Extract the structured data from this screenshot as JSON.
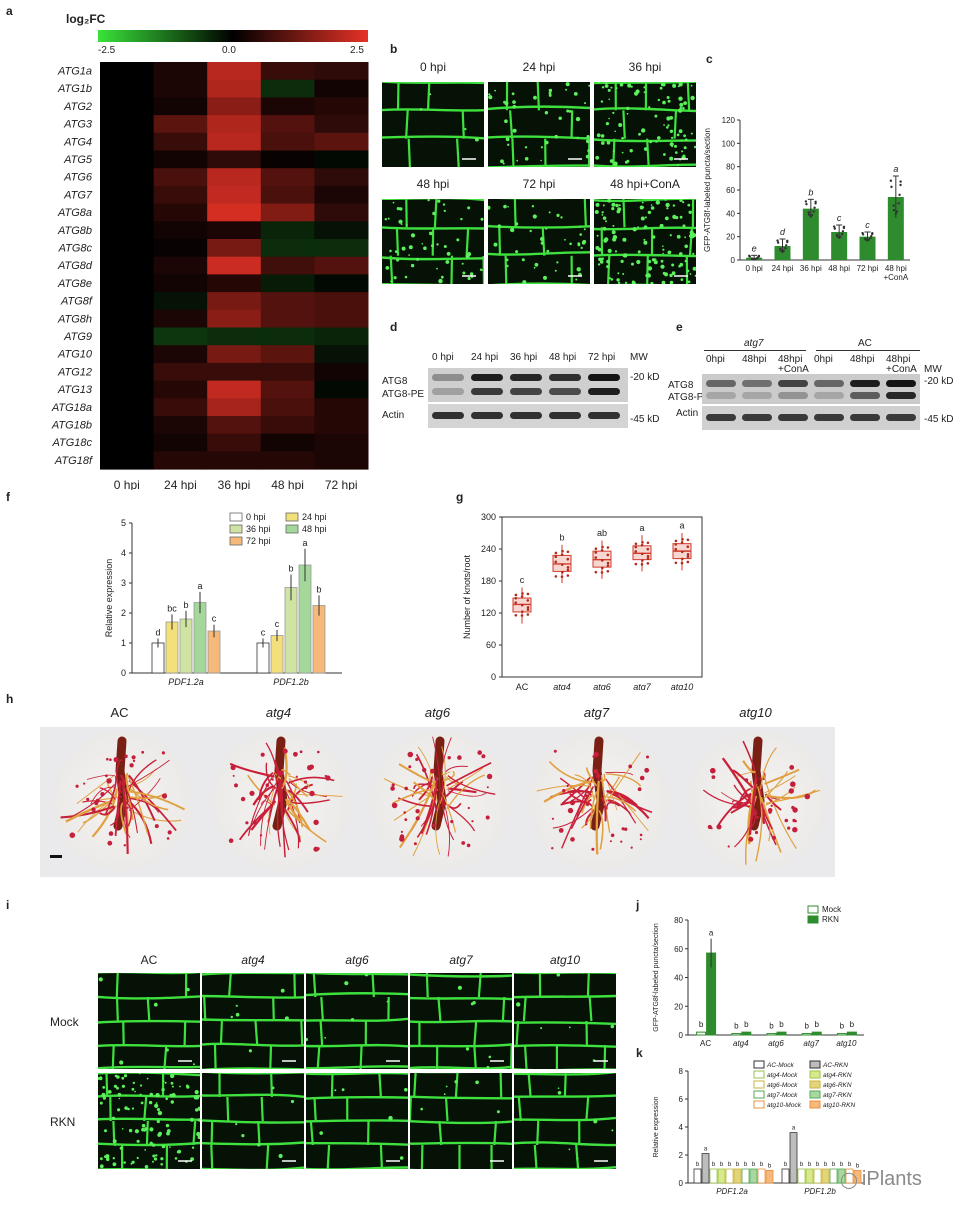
{
  "panels": [
    "a",
    "b",
    "c",
    "d",
    "e",
    "f",
    "g",
    "h",
    "i",
    "j",
    "k"
  ],
  "heatmap": {
    "title": "log₂FC",
    "scale_ticks": [
      "-2.5",
      "0.0",
      "2.5"
    ],
    "genes": [
      "ATG1a",
      "ATG1b",
      "ATG2",
      "ATG3",
      "ATG4",
      "ATG5",
      "ATG6",
      "ATG7",
      "ATG8a",
      "ATG8b",
      "ATG8c",
      "ATG8d",
      "ATG8e",
      "ATG8f",
      "ATG8h",
      "ATG9",
      "ATG10",
      "ATG12",
      "ATG13",
      "ATG18a",
      "ATG18b",
      "ATG18c",
      "ATG18f"
    ],
    "columns": [
      "0 hpi",
      "24 hpi",
      "36 hpi",
      "48 hpi",
      "72 hpi"
    ],
    "colors": {
      "low": "#39e339",
      "mid": "#000000",
      "high": "#e63226"
    }
  },
  "panel_b": {
    "labels": [
      "0 hpi",
      "24 hpi",
      "36 hpi",
      "48 hpi",
      "72 hpi",
      "48 hpi+ConA"
    ]
  },
  "panel_c": {
    "ylabel": "GFP-ATG8f-labeled puncta/section",
    "yticks": [
      "0",
      "20",
      "40",
      "60",
      "80",
      "100",
      "120"
    ],
    "categories": [
      "0 hpi",
      "24 hpi",
      "36 hpi",
      "48 hpi",
      "72 hpi",
      "48 hpi\n+ConA"
    ],
    "letters": [
      "e",
      "d",
      "b",
      "c",
      "c",
      "a"
    ]
  },
  "panel_d": {
    "lanes": [
      "0 hpi",
      "24 hpi",
      "36 hpi",
      "48 hpi",
      "72 hpi"
    ],
    "mw": "MW",
    "rows": [
      "ATG8",
      "ATG8-PE",
      "Actin"
    ],
    "markers": [
      "-20 kD",
      "-45 kD"
    ]
  },
  "panel_e": {
    "groups": [
      "atg7",
      "AC"
    ],
    "lanes": [
      "0hpi",
      "48hpi",
      "48hpi\n+ConA",
      "0hpi",
      "48hpi",
      "48hpi\n+ConA"
    ],
    "mw": "MW",
    "rows": [
      "ATG8",
      "ATG8-PE",
      "Actin"
    ],
    "markers": [
      "-20 kD",
      "-45 kD"
    ]
  },
  "panel_f": {
    "ylabel": "Relative expression",
    "yticks": [
      "0",
      "1",
      "2",
      "3",
      "4",
      "5"
    ],
    "groups": [
      "PDF1.2a",
      "PDF1.2b"
    ],
    "legend": [
      "0 hpi",
      "24 hpi",
      "36 hpi",
      "48 hpi",
      "72 hpi"
    ],
    "letters_a": [
      "d",
      "bc",
      "b",
      "a",
      "c"
    ],
    "letters_b": [
      "c",
      "c",
      "b",
      "a",
      "b"
    ]
  },
  "panel_g": {
    "ylabel": "Number of knots/root",
    "yticks": [
      "0",
      "60",
      "120",
      "180",
      "240",
      "300"
    ],
    "categories": [
      "AC",
      "atg4",
      "atg6",
      "atg7",
      "atg10"
    ],
    "letters": [
      "c",
      "b",
      "ab",
      "a",
      "a"
    ]
  },
  "panel_h": {
    "labels": [
      "AC",
      "atg4",
      "atg6",
      "atg7",
      "atg10"
    ]
  },
  "panel_i": {
    "columns": [
      "AC",
      "atg4",
      "atg6",
      "atg7",
      "atg10"
    ],
    "rows": [
      "Mock",
      "RKN"
    ]
  },
  "panel_j": {
    "ylabel": "GFP-ATG8f-labeled puncta/section",
    "yticks": [
      "0",
      "20",
      "40",
      "60",
      "80"
    ],
    "categories": [
      "AC",
      "atg4",
      "atg6",
      "atg7",
      "atg10"
    ],
    "legend": [
      "Mock",
      "RKN"
    ],
    "letters": [
      "b",
      "a",
      "b",
      "b",
      "b",
      "b",
      "b",
      "b",
      "b",
      "b"
    ]
  },
  "panel_k": {
    "ylabel": "Relative expression",
    "yticks": [
      "0",
      "2",
      "4",
      "6",
      "8"
    ],
    "groups": [
      "PDF1.2a",
      "PDF1.2b"
    ],
    "legend": [
      "AC-Mock",
      "AC-RKN",
      "atg4-Mock",
      "atg4-RKN",
      "atg6-Mock",
      "atg6-RKN",
      "atg7-Mock",
      "atg7-RKN",
      "atg10-Mock",
      "atg10-RKN"
    ]
  },
  "watermark": "iPlants",
  "chart_data": [
    {
      "type": "heatmap",
      "title": "log₂FC",
      "rows": [
        "ATG1a",
        "ATG1b",
        "ATG2",
        "ATG3",
        "ATG4",
        "ATG5",
        "ATG6",
        "ATG7",
        "ATG8a",
        "ATG8b",
        "ATG8c",
        "ATG8d",
        "ATG8e",
        "ATG8f",
        "ATG8h",
        "ATG9",
        "ATG10",
        "ATG12",
        "ATG13",
        "ATG18a",
        "ATG18b",
        "ATG18c",
        "ATG18f"
      ],
      "columns": [
        "0 hpi",
        "24 hpi",
        "36 hpi",
        "48 hpi",
        "72 hpi"
      ],
      "values": [
        [
          0,
          0.3,
          2.0,
          0.6,
          0.5
        ],
        [
          0,
          0.3,
          1.9,
          -0.5,
          0.2
        ],
        [
          0,
          0.2,
          1.5,
          0.3,
          0.4
        ],
        [
          0,
          1.0,
          1.9,
          0.9,
          0.5
        ],
        [
          0,
          0.6,
          2.0,
          0.8,
          1.0
        ],
        [
          0,
          0.2,
          0.5,
          0.1,
          -0.1
        ],
        [
          0,
          0.8,
          2.0,
          0.9,
          0.5
        ],
        [
          0,
          0.6,
          2.1,
          0.8,
          0.3
        ],
        [
          0,
          0.4,
          2.3,
          1.4,
          0.5
        ],
        [
          0,
          0.2,
          0.3,
          -0.4,
          -0.2
        ],
        [
          0,
          0.1,
          1.3,
          -0.5,
          -0.5
        ],
        [
          0,
          0.3,
          2.2,
          0.7,
          0.9
        ],
        [
          0,
          0.2,
          0.4,
          -0.3,
          -0.1
        ],
        [
          0,
          -0.2,
          1.3,
          0.9,
          0.8
        ],
        [
          0,
          0.3,
          1.5,
          0.9,
          0.8
        ],
        [
          0,
          -0.6,
          -0.5,
          -0.5,
          -0.4
        ],
        [
          0,
          0.3,
          1.3,
          1.0,
          -0.2
        ],
        [
          0,
          0.6,
          0.6,
          0.6,
          0.2
        ],
        [
          0,
          0.4,
          2.1,
          0.9,
          -0.1
        ],
        [
          0,
          0.6,
          1.8,
          0.8,
          0.4
        ],
        [
          0,
          0.3,
          0.9,
          0.6,
          0.4
        ],
        [
          0,
          0.2,
          0.6,
          0.2,
          0.3
        ],
        [
          0,
          0.4,
          0.4,
          0.4,
          0.3
        ]
      ],
      "range": [
        -2.5,
        2.5
      ]
    },
    {
      "type": "bar",
      "categories": [
        "0 hpi",
        "24 hpi",
        "36 hpi",
        "48 hpi",
        "72 hpi",
        "48 hpi +ConA"
      ],
      "values": [
        2,
        12,
        44,
        24,
        20,
        54
      ],
      "errors": [
        2,
        6,
        8,
        6,
        4,
        18
      ],
      "ylabel": "GFP-ATG8f-labeled puncta/section",
      "ylim": [
        0,
        120
      ]
    },
    {
      "type": "bar",
      "categories": [
        "PDF1.2a",
        "PDF1.2b"
      ],
      "series": [
        {
          "name": "0 hpi",
          "values": [
            1.0,
            1.0
          ],
          "color": "#ffffff"
        },
        {
          "name": "24 hpi",
          "values": [
            1.7,
            1.25
          ],
          "color": "#f3e07a"
        },
        {
          "name": "36 hpi",
          "values": [
            1.8,
            2.85
          ],
          "color": "#cfe3a2"
        },
        {
          "name": "48 hpi",
          "values": [
            2.35,
            3.6
          ],
          "color": "#a3d89a"
        },
        {
          "name": "72 hpi",
          "values": [
            1.4,
            2.25
          ],
          "color": "#f6b97a"
        }
      ],
      "ylabel": "Relative expression",
      "ylim": [
        0,
        5
      ]
    },
    {
      "type": "box",
      "categories": [
        "AC",
        "atg4",
        "atg6",
        "atg7",
        "atg10"
      ],
      "medians": [
        136,
        212,
        220,
        232,
        236
      ],
      "q1": [
        122,
        198,
        206,
        220,
        222
      ],
      "q3": [
        148,
        228,
        236,
        246,
        250
      ],
      "ylabel": "Number of knots/root",
      "ylim": [
        0,
        300
      ]
    },
    {
      "type": "bar",
      "categories": [
        "AC",
        "atg4",
        "atg6",
        "atg7",
        "atg10"
      ],
      "series": [
        {
          "name": "Mock",
          "values": [
            2,
            1,
            1,
            1,
            1
          ]
        },
        {
          "name": "RKN",
          "values": [
            57,
            2,
            2,
            2,
            2
          ]
        }
      ],
      "ylabel": "GFP-ATG8f-labeled puncta/section",
      "ylim": [
        0,
        80
      ]
    },
    {
      "type": "bar",
      "categories": [
        "PDF1.2a",
        "PDF1.2b"
      ],
      "series": [
        {
          "name": "AC-Mock",
          "values": [
            1.0,
            1.0
          ]
        },
        {
          "name": "AC-RKN",
          "values": [
            2.1,
            3.6
          ]
        },
        {
          "name": "atg4-Mock",
          "values": [
            1.0,
            1.0
          ]
        },
        {
          "name": "atg4-RKN",
          "values": [
            1.0,
            1.0
          ]
        },
        {
          "name": "atg6-Mock",
          "values": [
            1.0,
            1.0
          ]
        },
        {
          "name": "atg6-RKN",
          "values": [
            1.0,
            1.0
          ]
        },
        {
          "name": "atg7-Mock",
          "values": [
            1.0,
            1.0
          ]
        },
        {
          "name": "atg7-RKN",
          "values": [
            1.0,
            1.0
          ]
        },
        {
          "name": "atg10-Mock",
          "values": [
            1.0,
            1.0
          ]
        },
        {
          "name": "atg10-RKN",
          "values": [
            0.9,
            0.9
          ]
        }
      ],
      "ylabel": "Relative expression",
      "ylim": [
        0,
        8
      ]
    }
  ]
}
